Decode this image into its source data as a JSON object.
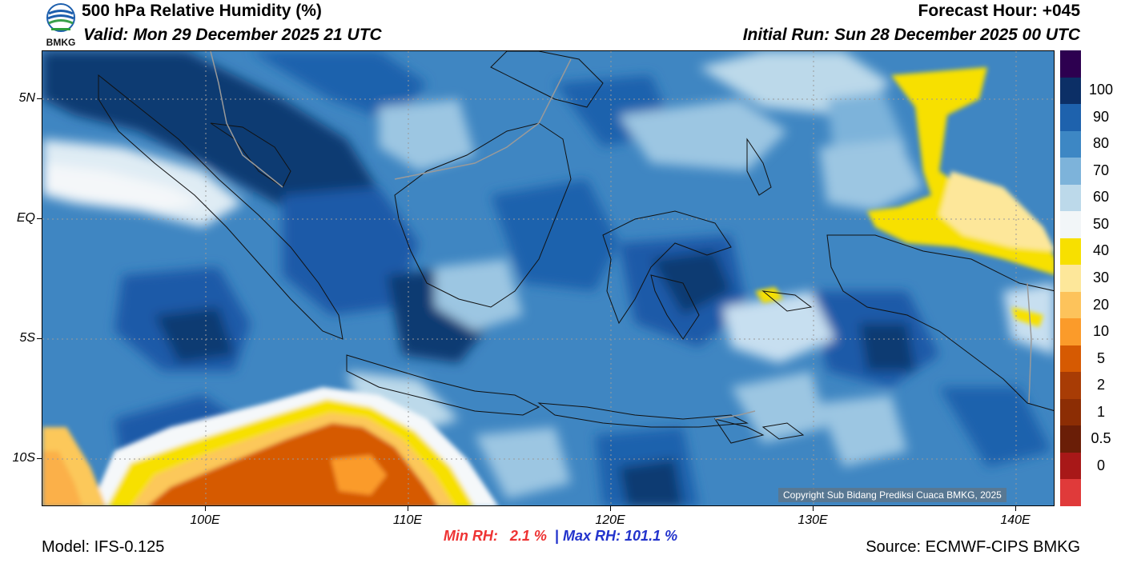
{
  "header": {
    "title": "500 hPa Relative Humidity (%)",
    "valid": "Valid: Mon 29 December 2025 21 UTC",
    "forecast_hour": "Forecast Hour: +045",
    "initial_run": "Initial Run: Sun 28 December 2025 00 UTC"
  },
  "logo": {
    "text": "BMKG"
  },
  "axes": {
    "lat_labels": [
      "5N",
      "EQ",
      "5S",
      "10S"
    ],
    "lon_labels": [
      "100E",
      "110E",
      "120E",
      "130E",
      "140E"
    ]
  },
  "colorbar": {
    "colors": [
      "#2d0050",
      "#0c2f66",
      "#1e62ad",
      "#3d87c4",
      "#7db3da",
      "#bcd9ea",
      "#f2f6f8",
      "#f7e000",
      "#fde79a",
      "#fdc35b",
      "#fb9b2a",
      "#d65a02",
      "#a83c05",
      "#8c2d04",
      "#6a1e07",
      "#a81818",
      "#e03a3a"
    ],
    "labels": [
      "100",
      "90",
      "80",
      "70",
      "60",
      "50",
      "40",
      "30",
      "20",
      "10",
      "5",
      "2",
      "1",
      "0.5",
      "0"
    ]
  },
  "stats": {
    "min_label": "Min RH:",
    "min_value": "2.1 %",
    "separator": "|",
    "max_label": "Max RH:",
    "max_value": "101.1 %"
  },
  "footer": {
    "model": "Model: IFS-0.125",
    "source": "Source: ECMWF-CIPS BMKG",
    "copyright": "Copyright Sub Bidang Prediksi Cuaca BMKG, 2025"
  }
}
